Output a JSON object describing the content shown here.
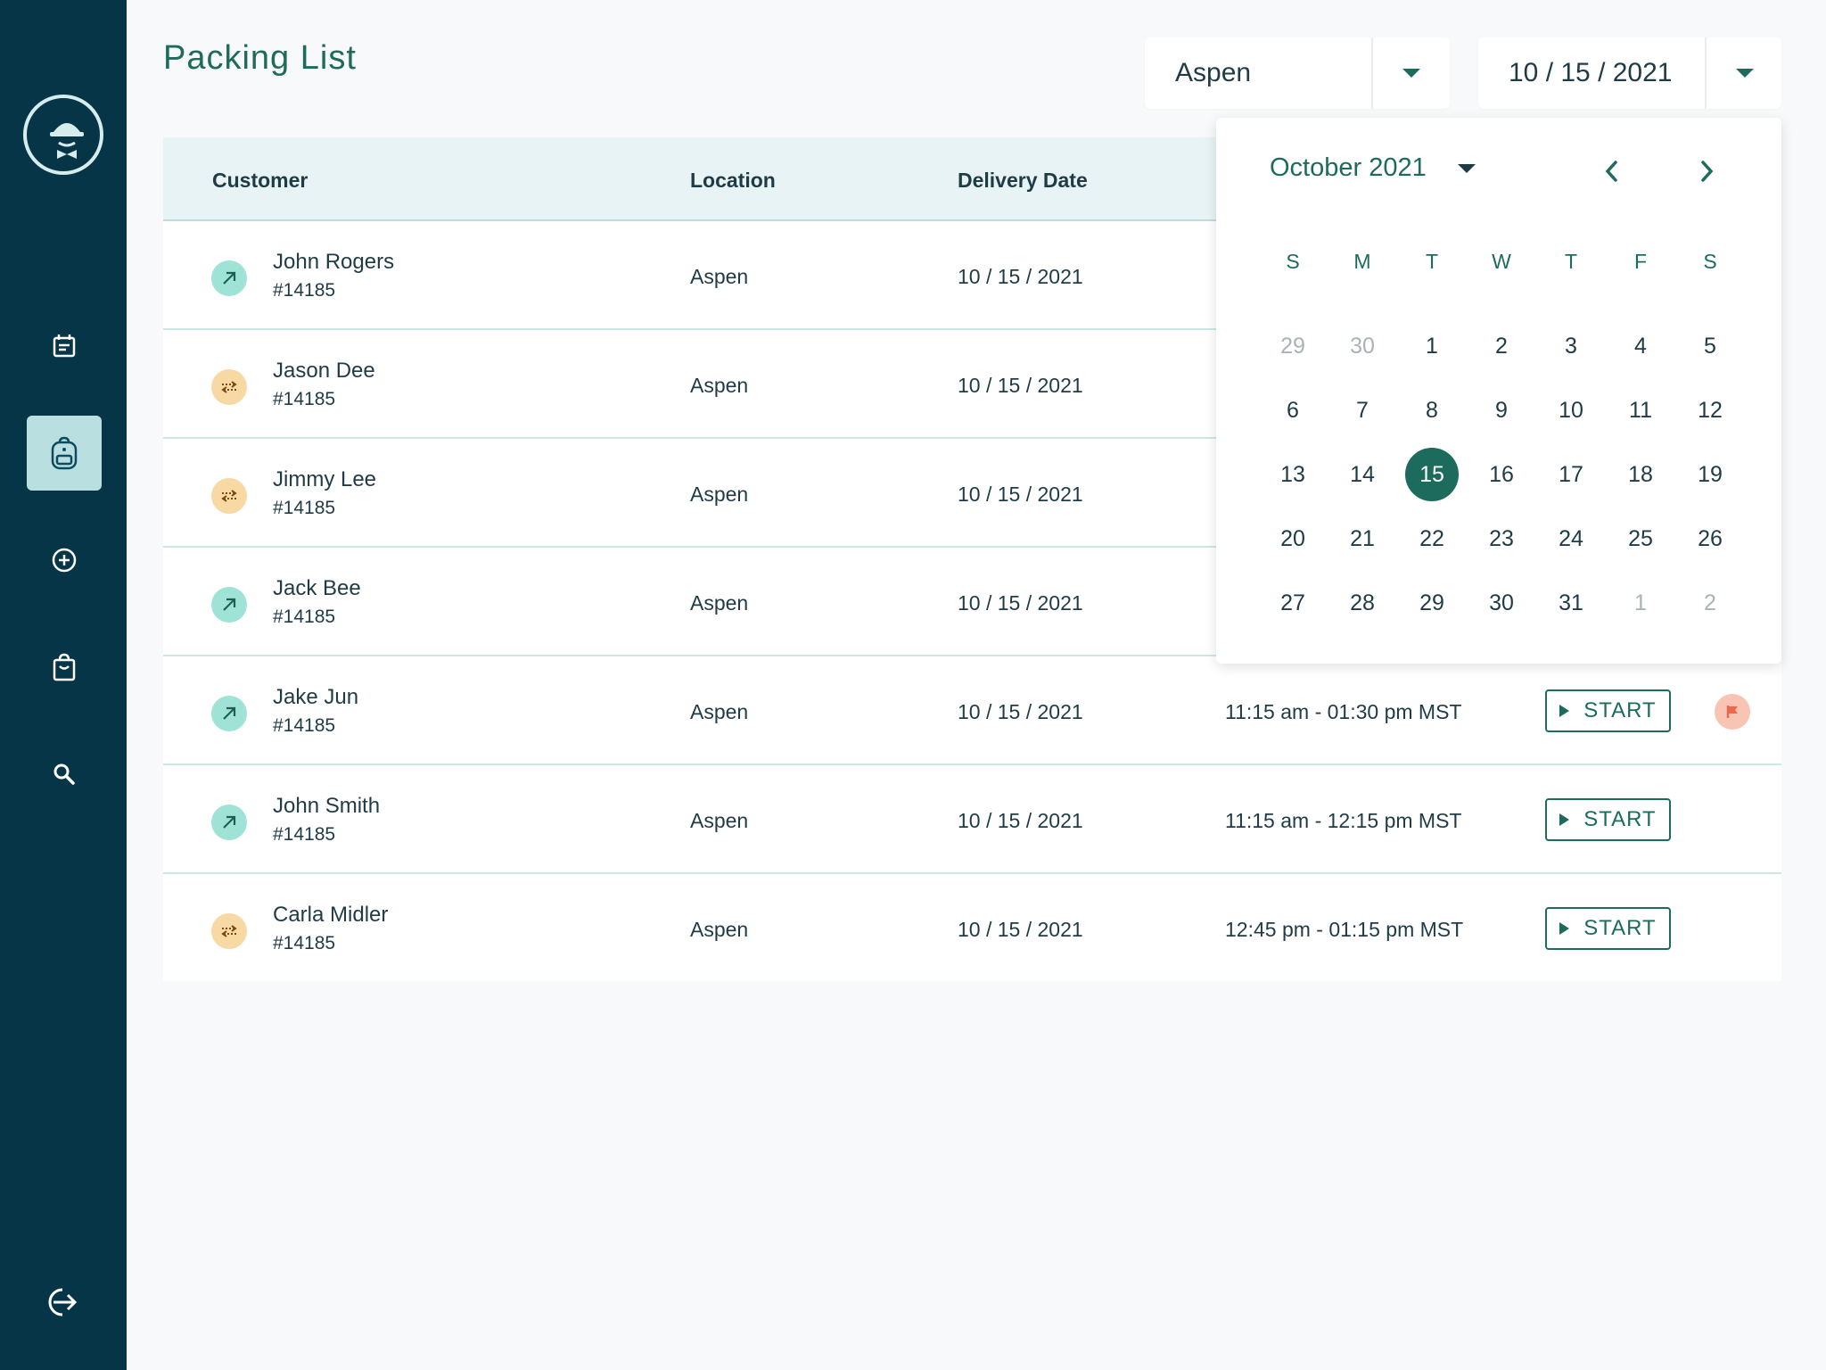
{
  "page": {
    "title": "Packing List"
  },
  "filters": {
    "location": "Aspen",
    "date": "10 / 15 / 2021"
  },
  "table": {
    "headers": {
      "customer": "Customer",
      "location": "Location",
      "delivery_date": "Delivery Date"
    },
    "rows": [
      {
        "name": "John Rogers",
        "order": "#14185",
        "location": "Aspen",
        "date": "10 / 15 / 2021",
        "time": "",
        "status": "out",
        "has_start": false,
        "flagged": false
      },
      {
        "name": "Jason Dee",
        "order": "#14185",
        "location": "Aspen",
        "date": "10 / 15 / 2021",
        "time": "",
        "status": "swap",
        "has_start": false,
        "flagged": false
      },
      {
        "name": "Jimmy Lee",
        "order": "#14185",
        "location": "Aspen",
        "date": "10 / 15 / 2021",
        "time": "",
        "status": "swap",
        "has_start": false,
        "flagged": false
      },
      {
        "name": "Jack Bee",
        "order": "#14185",
        "location": "Aspen",
        "date": "10 / 15 / 2021",
        "time": "",
        "status": "out",
        "has_start": false,
        "flagged": false
      },
      {
        "name": "Jake Jun",
        "order": "#14185",
        "location": "Aspen",
        "date": "10 / 15 / 2021",
        "time": "11:15 am - 01:30 pm MST",
        "status": "out",
        "has_start": true,
        "flagged": true
      },
      {
        "name": "John Smith",
        "order": "#14185",
        "location": "Aspen",
        "date": "10 / 15 / 2021",
        "time": "11:15 am - 12:15 pm MST",
        "status": "out",
        "has_start": true,
        "flagged": false
      },
      {
        "name": "Carla Midler",
        "order": "#14185",
        "location": "Aspen",
        "date": "10 / 15 / 2021",
        "time": "12:45 pm - 01:15 pm MST",
        "status": "swap",
        "has_start": true,
        "flagged": false
      }
    ],
    "start_label": "START"
  },
  "calendar": {
    "month_label": "October 2021",
    "weekdays": [
      "S",
      "M",
      "T",
      "W",
      "T",
      "F",
      "S"
    ],
    "weeks": [
      [
        {
          "d": "29",
          "m": true
        },
        {
          "d": "30",
          "m": true
        },
        {
          "d": "1"
        },
        {
          "d": "2"
        },
        {
          "d": "3"
        },
        {
          "d": "4"
        },
        {
          "d": "5"
        }
      ],
      [
        {
          "d": "6"
        },
        {
          "d": "7"
        },
        {
          "d": "8"
        },
        {
          "d": "9"
        },
        {
          "d": "10"
        },
        {
          "d": "11"
        },
        {
          "d": "12"
        }
      ],
      [
        {
          "d": "13"
        },
        {
          "d": "14"
        },
        {
          "d": "15",
          "s": true
        },
        {
          "d": "16"
        },
        {
          "d": "17"
        },
        {
          "d": "18"
        },
        {
          "d": "19"
        }
      ],
      [
        {
          "d": "20"
        },
        {
          "d": "21"
        },
        {
          "d": "22"
        },
        {
          "d": "23"
        },
        {
          "d": "24"
        },
        {
          "d": "25"
        },
        {
          "d": "26"
        }
      ],
      [
        {
          "d": "27"
        },
        {
          "d": "28"
        },
        {
          "d": "29"
        },
        {
          "d": "30"
        },
        {
          "d": "31"
        },
        {
          "d": "1",
          "m": true
        },
        {
          "d": "2",
          "m": true
        }
      ]
    ]
  },
  "icons": {
    "logo": "mascot-hat-bowtie-icon",
    "nav": [
      "calendar-icon",
      "backpack-icon",
      "add-circle-icon",
      "shopping-bag-icon",
      "search-icon"
    ],
    "logout": "logout-icon",
    "status_out": "arrow-up-right-icon",
    "status_swap": "swap-arrows-icon",
    "flag": "flag-icon"
  },
  "colors": {
    "sidebar": "#063548",
    "accent": "#1d6b5c",
    "header_bg": "#e7f3f4",
    "active_nav": "#b9dfe0",
    "status_out": "#9fe3d6",
    "status_swap": "#f9d9a3",
    "flag_bg": "#f8c4b4",
    "flag": "#e96a4c"
  }
}
